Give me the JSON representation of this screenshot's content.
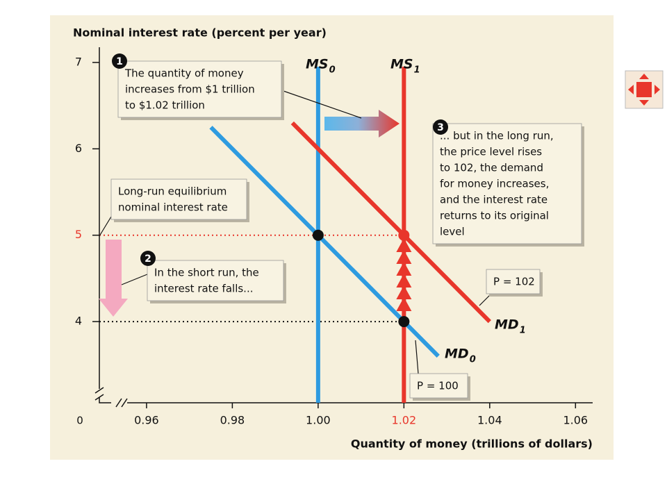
{
  "chart_data": {
    "type": "line",
    "y_label": "Nominal interest rate (percent per year)",
    "x_label": "Quantity of money (trillions of dollars)",
    "origin_label": "0",
    "xlim": [
      0.949,
      1.064
    ],
    "ylim": [
      3.06,
      7.12
    ],
    "xticks": [
      0.96,
      0.98,
      {
        "value": 1,
        "label": "1.00"
      },
      1.02,
      1.04,
      1.06
    ],
    "xtick_colors": [
      "#111",
      "#111",
      "#111",
      "#e8362b",
      "#111",
      "#111"
    ],
    "yticks": [
      4,
      5,
      6,
      7
    ],
    "ytick_colors": [
      "#111",
      "#e8362b",
      "#111",
      "#111"
    ],
    "series": [
      {
        "name": "MS",
        "subscript": "0",
        "color": "#2e9be0",
        "x": [
          1,
          1
        ],
        "values": [
          3.06,
          6.95
        ]
      },
      {
        "name": "MS",
        "subscript": "1",
        "color": "#e8362b",
        "x": [
          1.02,
          1.02
        ],
        "values": [
          3.06,
          6.95
        ]
      },
      {
        "name": "MD",
        "subscript": "0",
        "color": "#2e9be0",
        "x": [
          0.975,
          1.028
        ],
        "values": [
          6.25,
          3.6
        ]
      },
      {
        "name": "MD",
        "subscript": "1",
        "color": "#e8362b",
        "x": [
          0.994,
          1.04
        ],
        "values": [
          6.3,
          4
        ]
      }
    ],
    "points": [
      {
        "x": 1,
        "y": 5,
        "color": "#111"
      },
      {
        "x": 1.02,
        "y": 5,
        "color": "#e8362b"
      },
      {
        "x": 1.02,
        "y": 4,
        "color": "#111"
      }
    ],
    "hlines": [
      {
        "y": 5,
        "x_end": 1.02,
        "color": "#e8362b"
      },
      {
        "y": 4,
        "x_end": 1.02,
        "color": "#111"
      }
    ],
    "annotations": [
      {
        "number": "1",
        "lines": [
          "The quantity of money",
          "increases from $1 trillion",
          "to $1.02 trillion"
        ]
      },
      {
        "number": "2",
        "lines": [
          "In the short run, the",
          "interest rate falls..."
        ]
      },
      {
        "number": "3",
        "lines": [
          "... but in the long run,",
          "the price level rises",
          "to 102, the demand",
          "for money increases,",
          "and the interest rate",
          "returns to its original",
          "level"
        ]
      },
      {
        "lines": [
          "Long-run equilibrium",
          "nominal interest rate"
        ]
      },
      {
        "lines": [
          "P = 102"
        ]
      },
      {
        "lines": [
          "P = 100"
        ]
      }
    ]
  }
}
